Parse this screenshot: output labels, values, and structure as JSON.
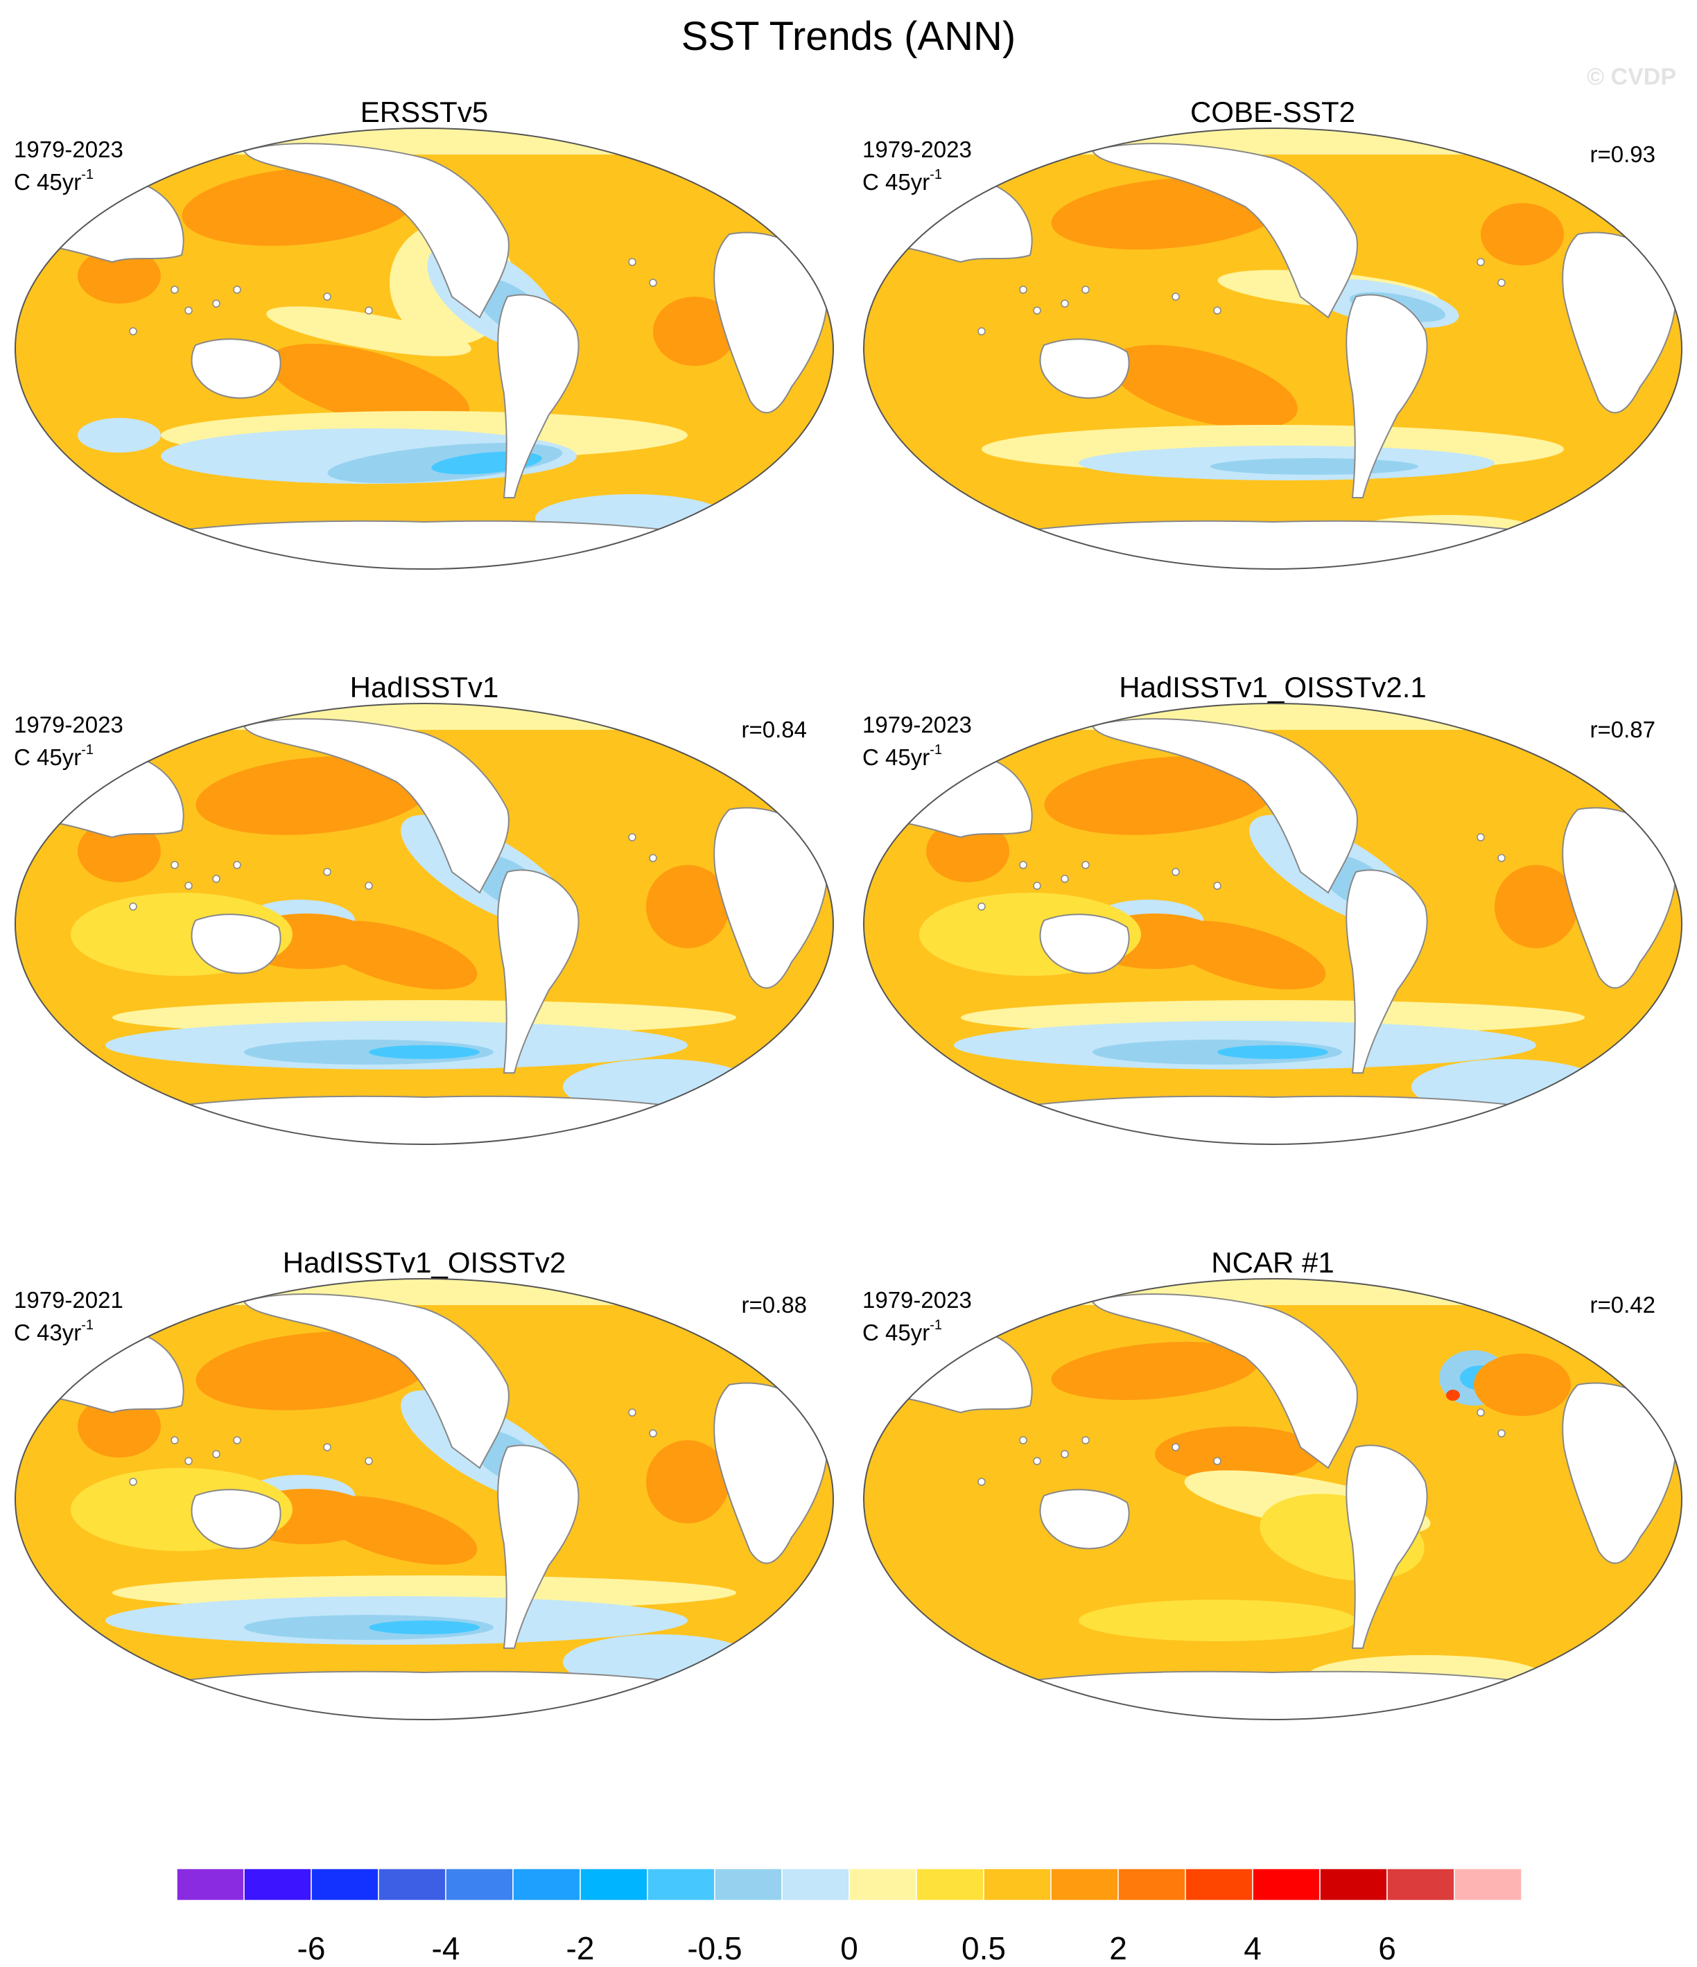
{
  "figure": {
    "title": "SST Trends (ANN)",
    "watermark": "© CVDP"
  },
  "panels": [
    {
      "title": "ERSSTv5",
      "period": "1979-2023",
      "units_prefix": "C 45yr",
      "units_exp": "-1",
      "corr": "",
      "pattern": "ersst"
    },
    {
      "title": "COBE-SST2",
      "period": "1979-2023",
      "units_prefix": "C 45yr",
      "units_exp": "-1",
      "corr": "r=0.93",
      "pattern": "cobe"
    },
    {
      "title": "HadISSTv1",
      "period": "1979-2023",
      "units_prefix": "C 45yr",
      "units_exp": "-1",
      "corr": "r=0.84",
      "pattern": "had"
    },
    {
      "title": "HadISSTv1_OISSTv2.1",
      "period": "1979-2023",
      "units_prefix": "C 45yr",
      "units_exp": "-1",
      "corr": "r=0.87",
      "pattern": "had"
    },
    {
      "title": "HadISSTv1_OISSTv2",
      "period": "1979-2021",
      "units_prefix": "C 43yr",
      "units_exp": "-1",
      "corr": "r=0.88",
      "pattern": "had"
    },
    {
      "title": "NCAR #1",
      "period": "1979-2023",
      "units_prefix": "C 45yr",
      "units_exp": "-1",
      "corr": "r=0.42",
      "pattern": "ncar"
    }
  ],
  "colorbar": {
    "colors": [
      "#8a2be2",
      "#3c14ff",
      "#1432ff",
      "#3c5fe6",
      "#3c82f0",
      "#1ea0ff",
      "#00b4ff",
      "#46c8ff",
      "#96d2f0",
      "#c3e6fa",
      "#fff5a0",
      "#ffe13c",
      "#ffc31e",
      "#ff9b0f",
      "#ff7a0a",
      "#ff4600",
      "#ff0000",
      "#d20000",
      "#dc3c3c",
      "#ffb4b4"
    ],
    "labels": [
      "-6",
      "-4",
      "-2",
      "-0.5",
      "0",
      "0.5",
      "2",
      "4",
      "6"
    ],
    "label_boundaries": [
      2,
      4,
      6,
      8,
      10,
      12,
      14,
      16,
      18
    ]
  },
  "map_colors": {
    "land": "#ffffff",
    "coast": "#888888",
    "warm_base": "#ffc31e",
    "warm_strong": "#ff9b0f",
    "light_warm": "#ffe13c",
    "neutral": "#fff5a0",
    "cool": "#c3e6fa",
    "cooler": "#96d2f0",
    "coldest": "#46c8ff",
    "hot": "#ff4600"
  }
}
